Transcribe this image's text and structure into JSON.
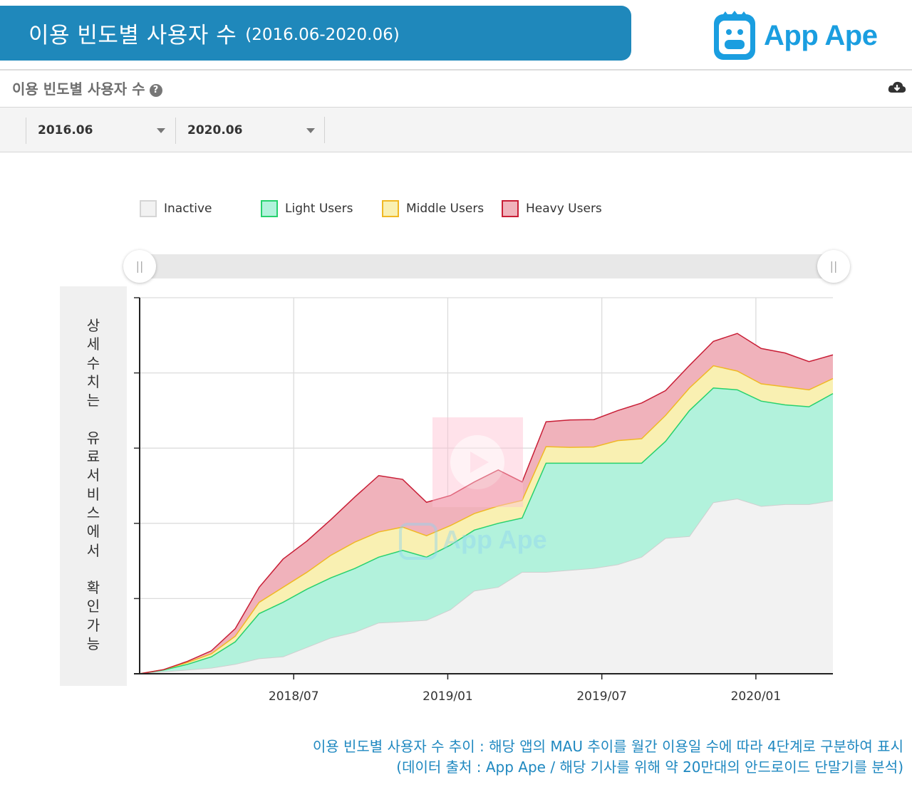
{
  "header": {
    "title": "이용 빈도별 사용자 수",
    "range": "(2016.06-2020.06)"
  },
  "logo": {
    "text": "App Ape"
  },
  "section": {
    "title": "이용 빈도별 사용자 수",
    "help_icon": "question-circle-icon",
    "download_icon": "cloud-download-icon"
  },
  "filters": {
    "start": "2016.06",
    "end": "2020.06"
  },
  "side_note": [
    "상",
    "세",
    "수",
    "치",
    "는",
    "",
    "유",
    "료",
    "서",
    "비",
    "스",
    "에",
    "서",
    "",
    "확",
    "인",
    "가",
    "능"
  ],
  "watermark": "App Ape",
  "footnote": {
    "line1": "이용 빈도별 사용자 수 추이 : 해당 앱의 MAU 추이를 월간 이용일 수에 따라 4단계로 구분하여 표시",
    "line2": "(데이터 출처 : App Ape / 해당 기사를 위해 약 20만대의 안드로이드 단말기를 분석)"
  },
  "colors": {
    "banner": "#1f88bb",
    "inactive_fill": "#f2f2f2",
    "inactive_line": "#cfcfcf",
    "light_fill": "#b2f2dc",
    "light_line": "#27d16e",
    "middle_fill": "#f9f0b2",
    "middle_line": "#f0b825",
    "heavy_fill": "#f0b2bb",
    "heavy_line": "#c81e36"
  },
  "chart_data": {
    "type": "area",
    "stacked": true,
    "title": "",
    "xlabel": "",
    "ylabel": "",
    "x_tick_labels": [
      "2018/07",
      "2019/01",
      "2019/07",
      "2020/01"
    ],
    "x_tick_months": [
      12,
      18,
      24,
      30
    ],
    "x_range": [
      0,
      27
    ],
    "x_offset": 6,
    "y_range": [
      0,
      100
    ],
    "y_gridlines": [
      0,
      20,
      40,
      60,
      80,
      100
    ],
    "legend": [
      "Inactive",
      "Light Users",
      "Middle Users",
      "Heavy Users"
    ],
    "series": [
      {
        "name": "Inactive",
        "values": [
          0,
          0.5,
          1.0,
          1.5,
          2.5,
          4,
          4.5,
          7,
          9.5,
          11,
          13.5,
          13.8,
          14.2,
          17,
          22,
          23,
          27,
          27,
          27.5,
          28,
          29,
          31,
          36,
          36.5,
          45.5,
          46.5,
          44.5,
          45,
          45,
          46
        ]
      },
      {
        "name": "Light Users",
        "values": [
          0,
          0.5,
          1.5,
          3.0,
          6.0,
          12,
          14.5,
          15.5,
          16,
          17,
          17.5,
          19,
          16.8,
          17.2,
          16.2,
          17,
          14.4,
          29,
          28.5,
          28,
          27,
          25,
          25.8,
          33.5,
          30.5,
          29,
          28,
          26.5,
          26,
          28.5
        ]
      },
      {
        "name": "Middle Users",
        "values": [
          0,
          0.1,
          0.5,
          0.8,
          1.5,
          3,
          4.0,
          4.5,
          6,
          7,
          6.7,
          6.2,
          5.7,
          5.2,
          4.4,
          4.6,
          4.7,
          4.4,
          4.2,
          4.3,
          6,
          6.5,
          6.9,
          6,
          5.9,
          5,
          4.6,
          4.8,
          4.5,
          4
        ]
      },
      {
        "name": "Heavy Users",
        "values": [
          0,
          0,
          0.3,
          0.8,
          2.0,
          4,
          7.5,
          8.3,
          9.5,
          12,
          15,
          12.7,
          8.9,
          8,
          8.4,
          9.6,
          4.9,
          6.6,
          7.3,
          7.3,
          8,
          9.5,
          6.6,
          6,
          6.5,
          10,
          9.4,
          9,
          7.5,
          6.3
        ]
      }
    ]
  }
}
